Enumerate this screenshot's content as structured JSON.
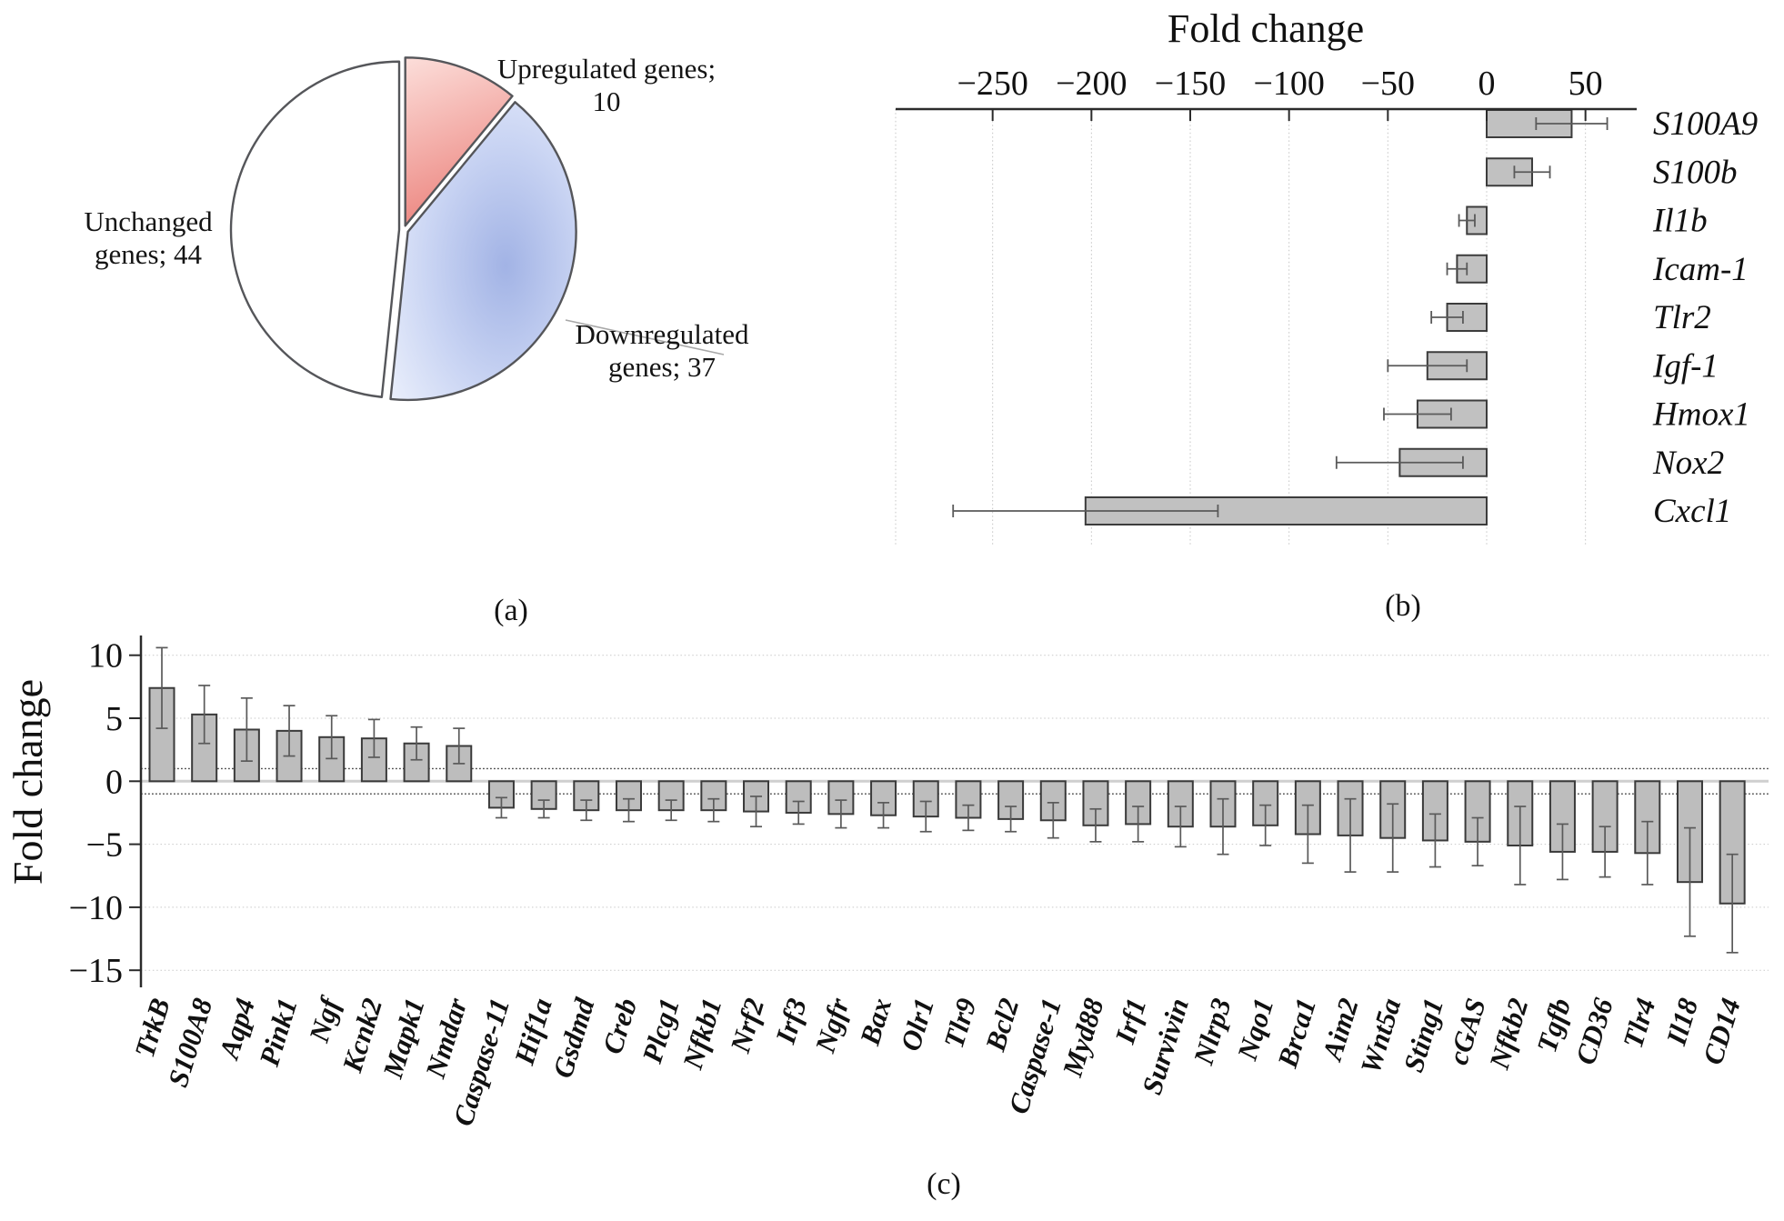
{
  "figure": {
    "captions": {
      "a": "(a)",
      "b": "(b)",
      "c": "(c)"
    }
  },
  "pie_labels": {
    "upregulated": [
      "Upregulated genes;",
      "10"
    ],
    "unchanged": [
      "Unchanged",
      "genes; 44"
    ],
    "downregulated": [
      "Downregulated",
      "genes; 37"
    ]
  },
  "chart_data": [
    {
      "id": "panel-a",
      "type": "pie",
      "slice_names": [
        "upregulated",
        "downregulated",
        "unchanged"
      ],
      "labels": [
        "Upregulated genes; 10",
        "Downregulated genes; 37",
        "Unchanged genes; 44"
      ],
      "values": [
        10,
        37,
        44
      ],
      "colors": {
        "upregulated": "#ee8b85",
        "downregulated": "#b3c2ec",
        "unchanged": "#ffffff"
      },
      "start_angle_deg": 0,
      "direction": "clockwise"
    },
    {
      "id": "panel-b",
      "type": "bar",
      "orientation": "horizontal",
      "title": "Fold change",
      "categories": [
        "S100A9",
        "S100b",
        "Il1b",
        "Icam-1",
        "Tlr2",
        "Igf-1",
        "Hmox1",
        "Nox2",
        "Cxcl1"
      ],
      "values": [
        43,
        23,
        -10,
        -15,
        -20,
        -30,
        -35,
        -44,
        -203
      ],
      "errors": [
        18,
        9,
        4,
        5,
        8,
        20,
        17,
        32,
        67
      ],
      "xticks": [
        -250,
        -200,
        -150,
        -100,
        -50,
        0,
        50
      ],
      "xlim": [
        -299,
        76
      ],
      "grid": "dotted-vertical",
      "bar_fill": "#c1c1c1",
      "bar_stroke": "#3c3c3c"
    },
    {
      "id": "panel-c",
      "type": "bar",
      "orientation": "vertical",
      "ylabel": "Fold change",
      "categories": [
        "TrkB",
        "S100A8",
        "Aqp4",
        "Pink1",
        "Ngf",
        "Kcnk2",
        "Mapk1",
        "Nmdar",
        "Caspase-11",
        "Hif1a",
        "Gsdmd",
        "Creb",
        "Plcg1",
        "Nfkb1",
        "Nrf2",
        "Irf3",
        "Ngfr",
        "Bax",
        "Olr1",
        "Tlr9",
        "Bcl2",
        "Caspase-1",
        "Myd88",
        "Irf1",
        "Survivin",
        "Nlrp3",
        "Nqo1",
        "Brca1",
        "Aim2",
        "Wnt5a",
        "Sting1",
        "cGAS",
        "Nfkb2",
        "Tgfb",
        "CD36",
        "Tlr4",
        "Il18",
        "CD14"
      ],
      "values": [
        7.4,
        5.3,
        4.1,
        4.0,
        3.5,
        3.4,
        3.0,
        2.8,
        -2.1,
        -2.2,
        -2.3,
        -2.3,
        -2.3,
        -2.3,
        -2.4,
        -2.5,
        -2.6,
        -2.7,
        -2.8,
        -2.9,
        -3.0,
        -3.1,
        -3.5,
        -3.4,
        -3.6,
        -3.6,
        -3.5,
        -4.2,
        -4.3,
        -4.5,
        -4.7,
        -4.8,
        -5.1,
        -5.6,
        -5.6,
        -5.7,
        -8.0,
        -9.7
      ],
      "errors": [
        3.2,
        2.3,
        2.5,
        2.0,
        1.7,
        1.5,
        1.3,
        1.4,
        0.8,
        0.7,
        0.8,
        0.9,
        0.8,
        0.9,
        1.2,
        0.9,
        1.1,
        1.0,
        1.2,
        1.0,
        1.0,
        1.4,
        1.3,
        1.4,
        1.6,
        2.2,
        1.6,
        2.3,
        2.9,
        2.7,
        2.1,
        1.9,
        3.1,
        2.2,
        2.0,
        2.5,
        4.3,
        3.9
      ],
      "yticks": [
        10,
        5,
        0,
        -5,
        -10,
        -15
      ],
      "ylim": [
        -16.5,
        11.5
      ],
      "reference_lines": [
        1,
        -1
      ],
      "grid": "dotted-horizontal",
      "bar_fill": "#bdbdbd",
      "bar_stroke": "#3a3a3a"
    }
  ]
}
